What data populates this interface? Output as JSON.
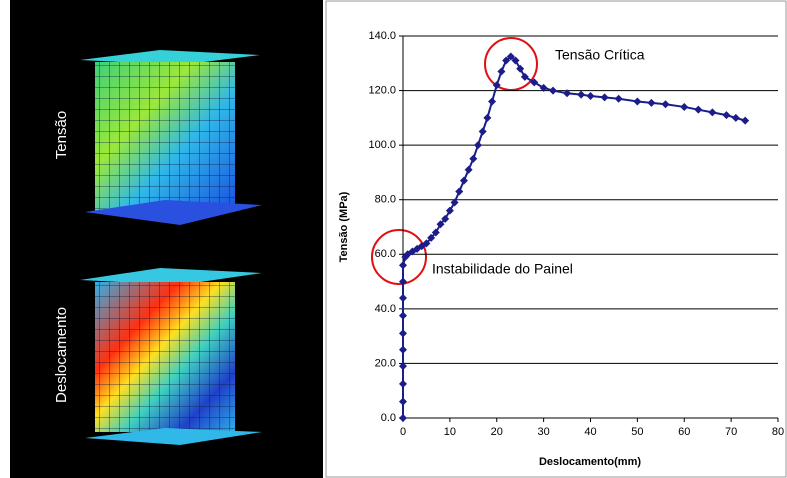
{
  "panel_labels": [
    "Tensão",
    "Deslocamento"
  ],
  "chart_data": {
    "type": "scatter",
    "x_label": "Deslocamento(mm)",
    "y_label": "Tensão (MPa)",
    "annotations": [
      "Tensão Crítica",
      "Instabilidade do Painel"
    ],
    "xlim": [
      0,
      80
    ],
    "xticks": [
      0,
      10,
      20,
      30,
      40,
      50,
      60,
      70,
      80
    ],
    "ylim": [
      0,
      140
    ],
    "yticks": [
      {
        "value": 0,
        "label": "0.0"
      },
      {
        "value": 20,
        "label": "20.0"
      },
      {
        "value": 40,
        "label": "40.0"
      },
      {
        "value": 60,
        "label": "60.0"
      },
      {
        "value": 80,
        "label": "80.0"
      },
      {
        "value": 100,
        "label": "100.0"
      },
      {
        "value": 120,
        "label": "120.0"
      },
      {
        "value": 140,
        "label": "140.0"
      }
    ],
    "grid": true,
    "series": [
      {
        "color": "#1c1c8a",
        "x": [
          0,
          0,
          0,
          0,
          0,
          0,
          0,
          0,
          0,
          0,
          0.5,
          1,
          2,
          3,
          4,
          5,
          6,
          7,
          8,
          9,
          10,
          11,
          12,
          13,
          14,
          15,
          16,
          17,
          18,
          19,
          20,
          21,
          22,
          23,
          24,
          25,
          26,
          28,
          30,
          32,
          35,
          38,
          40,
          43,
          46,
          50,
          53,
          56,
          60,
          63,
          66,
          69,
          71,
          73
        ],
        "values": [
          0,
          6,
          12.5,
          19,
          25,
          31,
          37.5,
          44,
          50,
          56,
          59,
          60,
          61,
          62,
          63,
          64,
          66,
          68,
          71,
          73,
          76,
          79,
          83,
          87,
          91,
          95,
          100,
          105,
          110,
          116,
          122,
          127,
          131,
          132.5,
          131,
          128,
          125,
          123,
          121,
          120,
          119,
          118.5,
          118,
          117.5,
          117,
          116,
          115.5,
          115,
          114,
          113,
          112,
          111,
          110,
          109
        ]
      }
    ]
  }
}
